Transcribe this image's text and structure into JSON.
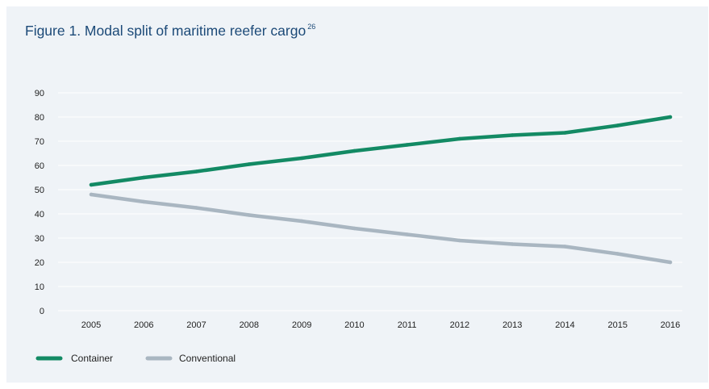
{
  "chart_title": {
    "text": "Figure 1. Modal split of maritime  reefer cargo",
    "footnote": "26"
  },
  "colors": {
    "background": "#eff3f7",
    "title": "#1c4a78",
    "container": "#138a64",
    "conventional": "#a9b6c1",
    "grid": "#ffffff"
  },
  "chart_data": {
    "type": "line",
    "title": "Figure 1. Modal split of maritime  reefer cargo",
    "xlabel": "",
    "ylabel": "",
    "x": [
      "2005",
      "2006",
      "2007",
      "2008",
      "2009",
      "2010",
      "2011",
      "2012",
      "2013",
      "2014",
      "2015",
      "2016"
    ],
    "y_ticks": [
      0,
      10,
      20,
      30,
      40,
      50,
      60,
      70,
      80,
      90
    ],
    "y_tick_labels": [
      "0",
      "10",
      "20",
      "30",
      "40",
      "50",
      "60",
      "70",
      "80",
      "90"
    ],
    "ylim": [
      0,
      90
    ],
    "grid": true,
    "legend_position": "bottom-left",
    "series": [
      {
        "name": "Container",
        "color": "#138a64",
        "values": [
          52,
          55,
          57.5,
          60.5,
          63,
          66,
          68.5,
          71,
          72.5,
          73.5,
          76.5,
          80
        ]
      },
      {
        "name": "Conventional",
        "color": "#a9b6c1",
        "values": [
          48,
          45,
          42.5,
          39.5,
          37,
          34,
          31.5,
          29,
          27.5,
          26.5,
          23.5,
          20
        ]
      }
    ]
  }
}
